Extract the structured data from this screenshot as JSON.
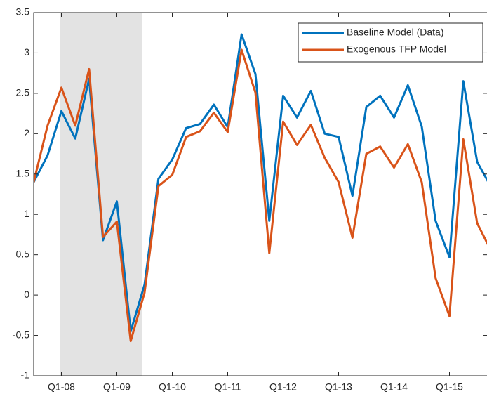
{
  "chart_data": {
    "type": "line",
    "categories": [
      null,
      null,
      "Q1-08",
      null,
      null,
      null,
      "Q1-09",
      null,
      null,
      null,
      "Q1-10",
      null,
      null,
      null,
      "Q1-11",
      null,
      null,
      null,
      "Q1-12",
      null,
      null,
      null,
      "Q1-13",
      null,
      null,
      null,
      "Q1-14",
      null,
      null,
      null,
      "Q1-15",
      null,
      null,
      null
    ],
    "series": [
      {
        "name": "Baseline Model (Data)",
        "color": "#0072BD",
        "values": [
          1.4,
          1.73,
          2.28,
          1.94,
          2.68,
          0.68,
          1.16,
          -0.45,
          0.13,
          1.44,
          1.68,
          2.07,
          2.12,
          2.36,
          2.08,
          3.23,
          2.74,
          0.92,
          2.47,
          2.2,
          2.53,
          2.0,
          1.96,
          1.23,
          2.33,
          2.47,
          2.2,
          2.6,
          2.09,
          0.92,
          0.47,
          2.65,
          1.65,
          1.34
        ]
      },
      {
        "name": "Exogenous TFP Model",
        "color": "#D95319",
        "values": [
          1.4,
          2.1,
          2.57,
          2.1,
          2.8,
          0.72,
          0.91,
          -0.57,
          0.03,
          1.35,
          1.49,
          1.96,
          2.03,
          2.26,
          2.02,
          3.04,
          2.51,
          0.52,
          2.15,
          1.86,
          2.11,
          1.7,
          1.4,
          0.71,
          1.75,
          1.84,
          1.58,
          1.87,
          1.4,
          0.21,
          -0.26,
          1.93,
          0.89,
          0.55
        ]
      }
    ],
    "ylim": [
      -1,
      3.5
    ],
    "yticks": [
      -1,
      -0.5,
      0,
      0.5,
      1,
      1.5,
      2,
      2.5,
      3,
      3.5
    ],
    "legend": "upper right"
  }
}
